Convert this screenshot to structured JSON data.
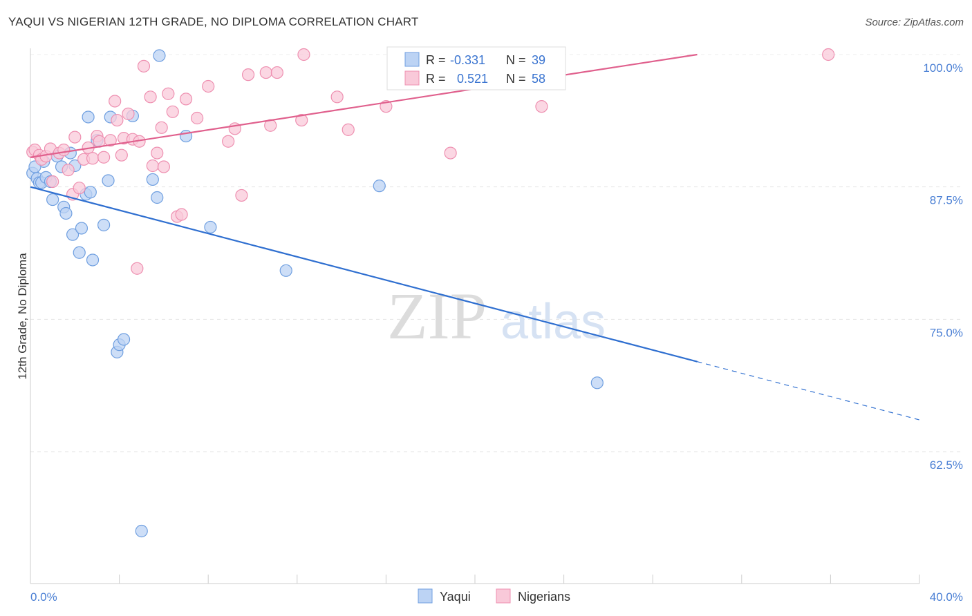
{
  "title": "YAQUI VS NIGERIAN 12TH GRADE, NO DIPLOMA CORRELATION CHART",
  "source": "Source: ZipAtlas.com",
  "watermark": {
    "zip": "ZIP",
    "atlas": "atlas"
  },
  "chart_data": {
    "type": "scatter",
    "ylabel": "12th Grade, No Diploma",
    "xlim": [
      0,
      40
    ],
    "ylim": [
      54,
      101
    ],
    "x_tick_labels": [
      {
        "value": 0,
        "label": "0.0%"
      },
      {
        "value": 40,
        "label": "40.0%"
      }
    ],
    "y_tick_labels": [
      {
        "value": 100,
        "label": "100.0%"
      },
      {
        "value": 87.5,
        "label": "87.5%"
      },
      {
        "value": 75,
        "label": "75.0%"
      },
      {
        "value": 62.5,
        "label": "62.5%"
      }
    ],
    "grid": "horizontal dashed",
    "legend_position": "top-center",
    "series": [
      {
        "name": "Yaqui",
        "color": "#6f9fe0",
        "fill": "#bcd3f4",
        "line_color": "#2f6fd0",
        "stats": {
          "r_label": "R =",
          "r": "-0.331",
          "n_label": "N =",
          "n": "39"
        },
        "trend": {
          "x0": 0,
          "y0": 87.5,
          "x1": 30,
          "y1": 71.0,
          "dash_to_x": 40,
          "dash_to_y": 65.5
        },
        "points": [
          [
            0.1,
            88.8
          ],
          [
            0.3,
            88.3
          ],
          [
            0.4,
            87.9
          ],
          [
            0.5,
            87.9
          ],
          [
            0.6,
            89.9
          ],
          [
            0.7,
            88.4
          ],
          [
            0.9,
            88.0
          ],
          [
            1.0,
            86.3
          ],
          [
            1.2,
            90.4
          ],
          [
            1.4,
            89.4
          ],
          [
            1.5,
            85.6
          ],
          [
            1.6,
            85.0
          ],
          [
            1.8,
            90.7
          ],
          [
            1.9,
            83.0
          ],
          [
            2.0,
            89.5
          ],
          [
            2.2,
            81.3
          ],
          [
            2.3,
            83.6
          ],
          [
            2.5,
            86.8
          ],
          [
            2.6,
            94.1
          ],
          [
            2.7,
            87.0
          ],
          [
            2.8,
            80.6
          ],
          [
            3.0,
            91.9
          ],
          [
            3.3,
            83.9
          ],
          [
            3.5,
            88.1
          ],
          [
            3.6,
            94.1
          ],
          [
            3.9,
            71.9
          ],
          [
            4.0,
            72.6
          ],
          [
            4.2,
            73.1
          ],
          [
            4.6,
            94.2
          ],
          [
            5.0,
            55.0
          ],
          [
            5.5,
            88.2
          ],
          [
            5.7,
            86.5
          ],
          [
            5.8,
            99.9
          ],
          [
            7.0,
            92.3
          ],
          [
            8.1,
            83.7
          ],
          [
            11.5,
            79.6
          ],
          [
            15.7,
            87.6
          ],
          [
            25.5,
            69.0
          ],
          [
            0.2,
            89.4
          ]
        ]
      },
      {
        "name": "Nigerians",
        "color": "#ee8fb0",
        "fill": "#f9c9d9",
        "line_color": "#e0608d",
        "stats": {
          "r_label": "R =",
          "r": "0.521",
          "n_label": "N =",
          "n": "58"
        },
        "trend": {
          "x0": 0,
          "y0": 90.3,
          "x1": 30,
          "y1": 100.0
        },
        "points": [
          [
            0.1,
            90.8
          ],
          [
            0.2,
            91.0
          ],
          [
            0.4,
            90.5
          ],
          [
            0.5,
            90.1
          ],
          [
            0.7,
            90.4
          ],
          [
            0.9,
            91.1
          ],
          [
            1.0,
            88.0
          ],
          [
            1.3,
            90.7
          ],
          [
            1.5,
            91.0
          ],
          [
            1.7,
            89.1
          ],
          [
            1.9,
            86.8
          ],
          [
            2.0,
            92.2
          ],
          [
            2.2,
            87.4
          ],
          [
            2.4,
            90.1
          ],
          [
            2.6,
            91.2
          ],
          [
            2.8,
            90.2
          ],
          [
            3.0,
            92.3
          ],
          [
            3.1,
            91.8
          ],
          [
            3.3,
            90.3
          ],
          [
            3.6,
            91.9
          ],
          [
            3.8,
            95.6
          ],
          [
            3.9,
            93.8
          ],
          [
            4.1,
            90.5
          ],
          [
            4.2,
            92.1
          ],
          [
            4.4,
            94.4
          ],
          [
            4.6,
            92.0
          ],
          [
            4.8,
            79.8
          ],
          [
            4.9,
            91.8
          ],
          [
            5.1,
            98.9
          ],
          [
            5.4,
            96.0
          ],
          [
            5.5,
            89.5
          ],
          [
            5.7,
            90.7
          ],
          [
            5.9,
            93.1
          ],
          [
            6.0,
            89.4
          ],
          [
            6.2,
            96.3
          ],
          [
            6.4,
            94.6
          ],
          [
            6.6,
            84.7
          ],
          [
            6.8,
            84.9
          ],
          [
            7.0,
            95.8
          ],
          [
            7.5,
            94.0
          ],
          [
            8.0,
            97.0
          ],
          [
            8.9,
            91.8
          ],
          [
            9.2,
            93.0
          ],
          [
            9.5,
            86.7
          ],
          [
            9.8,
            98.1
          ],
          [
            10.6,
            98.3
          ],
          [
            10.8,
            93.3
          ],
          [
            11.1,
            98.3
          ],
          [
            12.2,
            93.8
          ],
          [
            12.3,
            100.0
          ],
          [
            13.8,
            96.0
          ],
          [
            14.3,
            92.9
          ],
          [
            16.0,
            95.1
          ],
          [
            16.4,
            100.0
          ],
          [
            18.6,
            100.0
          ],
          [
            18.9,
            90.7
          ],
          [
            23.0,
            95.1
          ],
          [
            35.9,
            100.0
          ]
        ]
      }
    ]
  }
}
